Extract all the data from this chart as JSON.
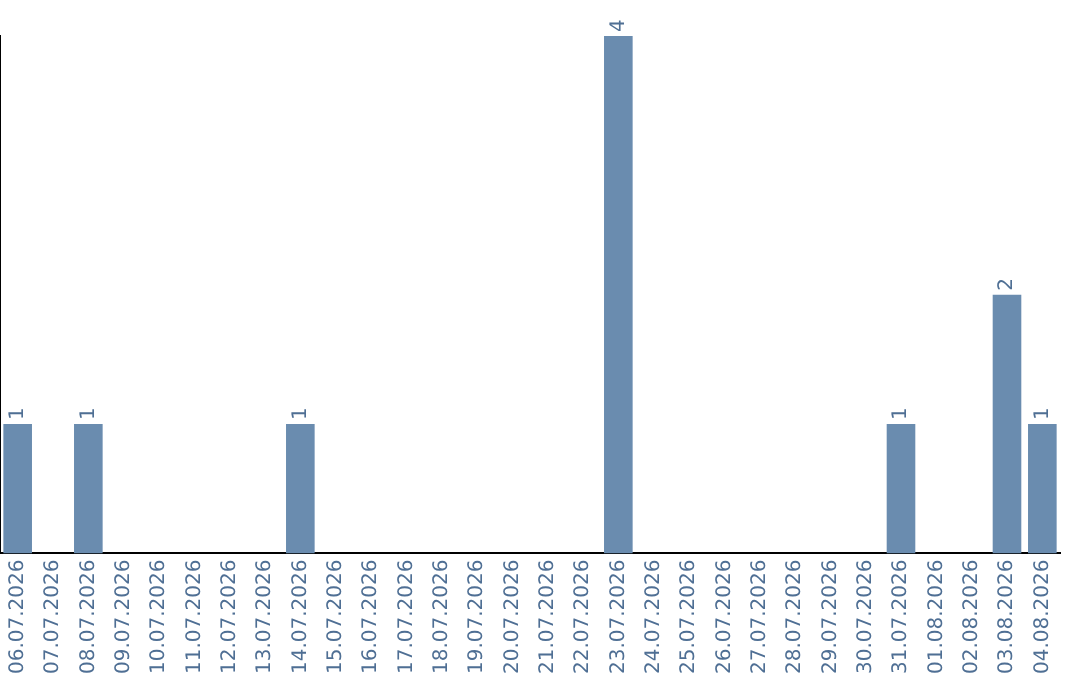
{
  "chart_data": {
    "type": "bar",
    "categories": [
      "06.07.2026",
      "07.07.2026",
      "08.07.2026",
      "09.07.2026",
      "10.07.2026",
      "11.07.2026",
      "12.07.2026",
      "13.07.2026",
      "14.07.2026",
      "15.07.2026",
      "16.07.2026",
      "17.07.2026",
      "18.07.2026",
      "19.07.2026",
      "20.07.2026",
      "21.07.2026",
      "22.07.2026",
      "23.07.2026",
      "24.07.2026",
      "25.07.2026",
      "26.07.2026",
      "27.07.2026",
      "28.07.2026",
      "29.07.2026",
      "30.07.2026",
      "31.07.2026",
      "01.08.2026",
      "02.08.2026",
      "03.08.2026",
      "04.08.2026"
    ],
    "values": [
      1,
      0,
      1,
      0,
      0,
      0,
      0,
      0,
      1,
      0,
      0,
      0,
      0,
      0,
      0,
      0,
      0,
      4,
      0,
      0,
      0,
      0,
      0,
      0,
      0,
      1,
      0,
      0,
      2,
      1
    ],
    "value_labels": [
      "1",
      null,
      "1",
      null,
      null,
      null,
      null,
      null,
      "1",
      null,
      null,
      null,
      null,
      null,
      null,
      null,
      null,
      "4",
      null,
      null,
      null,
      null,
      null,
      null,
      null,
      "1",
      null,
      null,
      "2",
      "1"
    ],
    "color": "#6a8caf",
    "grid": false,
    "legend": false,
    "tick_labels": "x"
  }
}
